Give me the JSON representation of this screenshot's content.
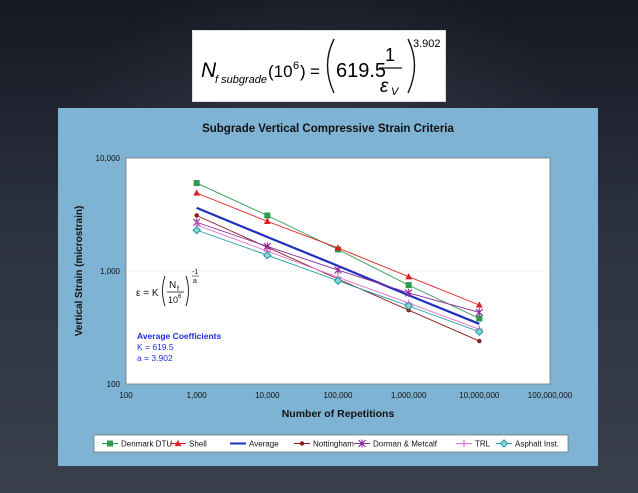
{
  "formula": {
    "lhs_symbol": "N",
    "lhs_subscript": "f subgrade",
    "lhs_arg": "(10",
    "lhs_arg_exp": "6",
    "lhs_arg_close": ")",
    "equals": "=",
    "coefficient": "619.5",
    "numerator": "1",
    "denominator": "ε",
    "denominator_sub": "V",
    "exponent": "3.902"
  },
  "chart_data": {
    "type": "line",
    "title": "Subgrade Vertical Compressive Strain Criteria",
    "xlabel": "Number of Repetitions",
    "ylabel": "Vertical Strain (microstrain)",
    "x_scale": "log",
    "y_scale": "log",
    "xlim": [
      100,
      100000000
    ],
    "ylim": [
      100,
      10000
    ],
    "x_ticks": [
      100,
      1000,
      10000,
      100000,
      1000000,
      10000000,
      100000000
    ],
    "x_tick_labels": [
      "100",
      "1,000",
      "10,000",
      "100,000",
      "1,000,000",
      "10,000,000",
      "100,000,000"
    ],
    "y_ticks": [
      100,
      1000,
      10000
    ],
    "y_tick_labels": [
      "100",
      "1,000",
      "10,000"
    ],
    "grid": false,
    "legend_position": "bottom",
    "x": [
      1000,
      10000,
      100000,
      1000000,
      10000000
    ],
    "series": [
      {
        "name": "Denmark DTU",
        "color": "#2e9a4e",
        "marker": "square",
        "values": [
          6000,
          3100,
          1550,
          750,
          380
        ]
      },
      {
        "name": "Shell",
        "color": "#e02020",
        "marker": "triangle",
        "values": [
          4900,
          2750,
          1600,
          890,
          500
        ]
      },
      {
        "name": "Average",
        "color": "#1f2fbf",
        "marker": "none",
        "values": [
          3620,
          2000,
          1110,
          610,
          340
        ]
      },
      {
        "name": "Nottingham",
        "color": "#8b1a1a",
        "marker": "dot",
        "values": [
          3100,
          1620,
          850,
          450,
          240
        ]
      },
      {
        "name": "Dorman & Metcalf",
        "color": "#8a2a9a",
        "marker": "star",
        "values": [
          2700,
          1650,
          1020,
          640,
          430
        ]
      },
      {
        "name": "TRL",
        "color": "#e070d0",
        "marker": "plus",
        "values": [
          2550,
          1500,
          880,
          520,
          305
        ]
      },
      {
        "name": "Asphalt Inst.",
        "color": "#1a9aa0",
        "marker": "diamond",
        "values": [
          2300,
          1380,
          820,
          490,
          290
        ]
      }
    ],
    "inset_formula": {
      "lhs": "ε = K",
      "frac_num": "N",
      "frac_num_sub": "f",
      "frac_den": "10",
      "frac_den_exp": "6",
      "exp_num": "-1",
      "exp_den": "a"
    },
    "annotation": {
      "heading": "Average Coefficients",
      "lines": [
        "K = 619.5",
        "a = 3.902"
      ]
    }
  }
}
